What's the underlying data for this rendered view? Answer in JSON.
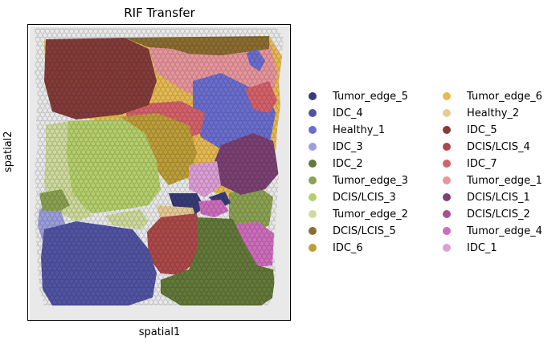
{
  "chart_data": {
    "type": "scatter",
    "title": "RIF Transfer",
    "xlabel": "spatial1",
    "ylabel": "spatial2",
    "grid": false,
    "legend_placement": "right, two columns",
    "background_tissue_color": "#e6e6e6",
    "categories": [
      {
        "name": "Tumor_edge_5",
        "color": "#393b79"
      },
      {
        "name": "IDC_4",
        "color": "#5254a3"
      },
      {
        "name": "Healthy_1",
        "color": "#6b6ecf"
      },
      {
        "name": "IDC_3",
        "color": "#9c9ede"
      },
      {
        "name": "IDC_2",
        "color": "#637939"
      },
      {
        "name": "Tumor_edge_3",
        "color": "#8ca252"
      },
      {
        "name": "DCIS/LCIS_3",
        "color": "#b5cf6b"
      },
      {
        "name": "Tumor_edge_2",
        "color": "#cedb9c"
      },
      {
        "name": "DCIS/LCIS_5",
        "color": "#8c6d31"
      },
      {
        "name": "IDC_6",
        "color": "#bd9e39"
      },
      {
        "name": "Tumor_edge_6",
        "color": "#e7ba52"
      },
      {
        "name": "Healthy_2",
        "color": "#e7cb94"
      },
      {
        "name": "IDC_5",
        "color": "#843c39"
      },
      {
        "name": "DCIS/LCIS_4",
        "color": "#ad494a"
      },
      {
        "name": "IDC_7",
        "color": "#d6616b"
      },
      {
        "name": "Tumor_edge_1",
        "color": "#e7969c"
      },
      {
        "name": "DCIS/LCIS_1",
        "color": "#7b4173"
      },
      {
        "name": "DCIS/LCIS_2",
        "color": "#a55194"
      },
      {
        "name": "Tumor_edge_4",
        "color": "#ce6dbd"
      },
      {
        "name": "IDC_1",
        "color": "#de9ed6"
      }
    ]
  }
}
